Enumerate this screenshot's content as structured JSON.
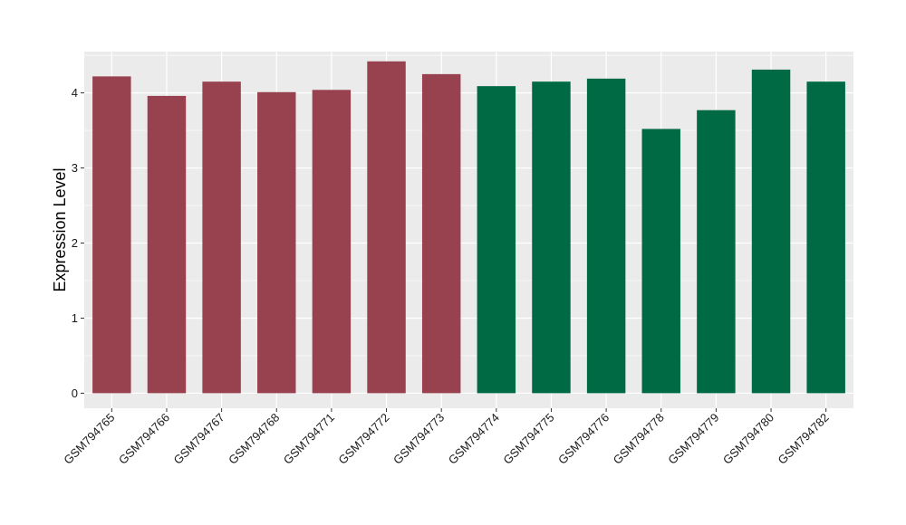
{
  "chart_data": {
    "type": "bar",
    "title": "",
    "xlabel": "",
    "ylabel": "Expression Level",
    "ylim": [
      -0.2,
      4.55
    ],
    "yticks": [
      0,
      1,
      2,
      3,
      4
    ],
    "ytick_labels": [
      "0",
      "1",
      "2",
      "3",
      "4"
    ],
    "grid": true,
    "legend": "none",
    "categories": [
      "GSM794765",
      "GSM794766",
      "GSM794767",
      "GSM794768",
      "GSM794771",
      "GSM794772",
      "GSM794773",
      "GSM794774",
      "GSM794775",
      "GSM794776",
      "GSM794778",
      "GSM794779",
      "GSM794780",
      "GSM794782"
    ],
    "values": [
      4.22,
      3.96,
      4.15,
      4.01,
      4.04,
      4.42,
      4.25,
      4.09,
      4.15,
      4.19,
      3.52,
      3.77,
      4.31,
      4.15
    ],
    "bar_colors": [
      "#99424f",
      "#99424f",
      "#99424f",
      "#99424f",
      "#99424f",
      "#99424f",
      "#99424f",
      "#006a45",
      "#006a45",
      "#006a45",
      "#006a45",
      "#006a45",
      "#006a45",
      "#006a45"
    ],
    "panel_background": "#ebebeb",
    "grid_color": "#ffffff"
  }
}
